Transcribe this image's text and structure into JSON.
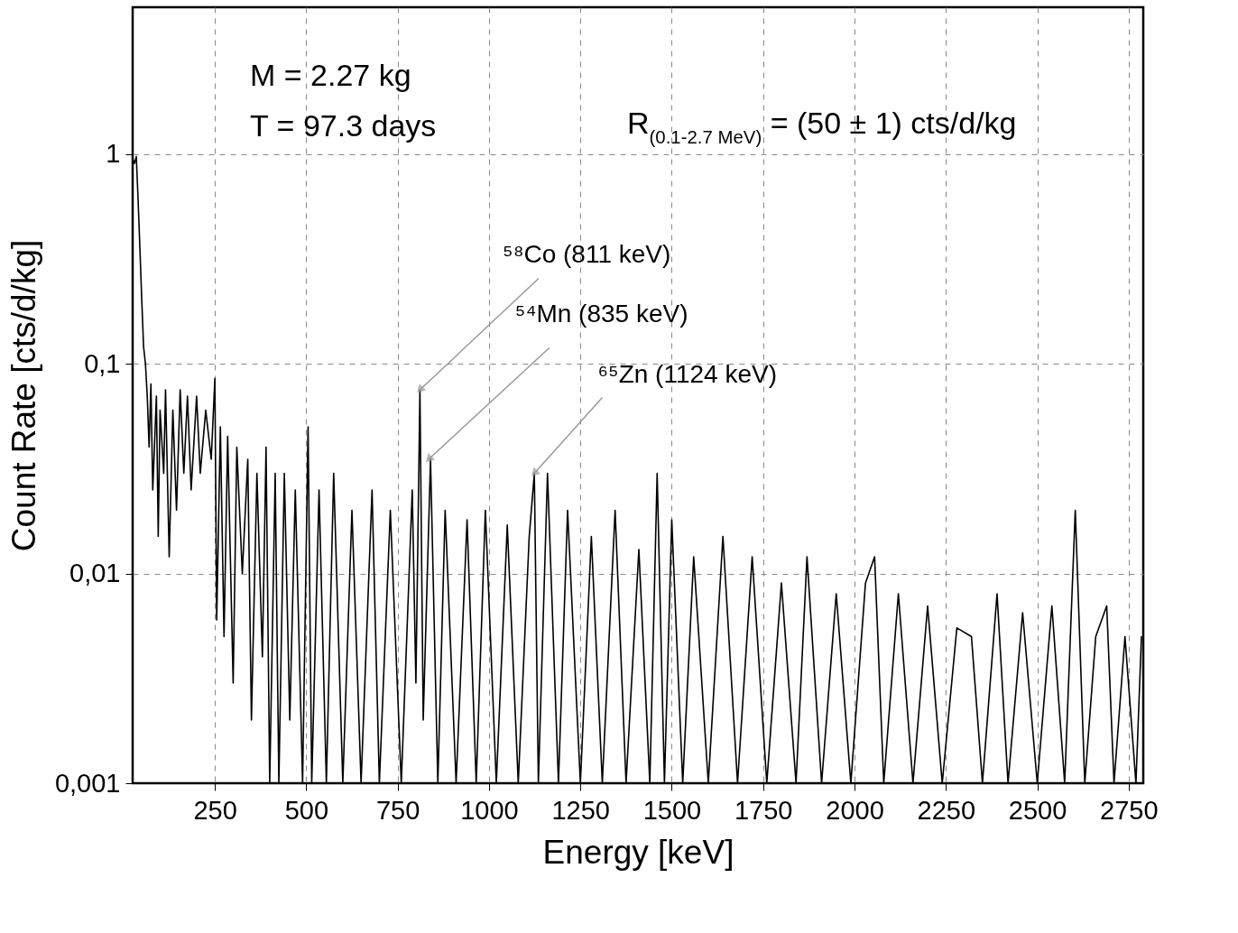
{
  "chart_data": {
    "type": "line",
    "xlabel": "Energy [keV]",
    "ylabel": "Count Rate [cts/d/kg]",
    "annotations": [
      "M = 2.27 kg",
      "T = 97.3 days",
      "R$_{(0.1-2.7 MeV)}$ = (50 ± 1) cts/d/kg",
      {
        "text": "⁵⁸Co (811 keV)",
        "x": 811,
        "y": 0.075
      },
      {
        "text": "⁵⁴Mn (835 keV)",
        "x": 835,
        "y": 0.035
      },
      {
        "text": "⁶⁵Zn (1124 keV)",
        "x": 1124,
        "y": 0.03
      }
    ],
    "x": [
      25,
      30,
      35,
      40,
      45,
      50,
      55,
      60,
      65,
      70,
      75,
      80,
      90,
      95,
      100,
      110,
      115,
      125,
      135,
      145,
      155,
      165,
      175,
      185,
      200,
      210,
      225,
      240,
      250,
      255,
      265,
      275,
      285,
      300,
      310,
      325,
      340,
      350,
      365,
      380,
      390,
      400,
      415,
      425,
      440,
      455,
      470,
      490,
      505,
      515,
      535,
      555,
      575,
      600,
      625,
      650,
      680,
      700,
      730,
      760,
      790,
      800,
      811,
      820,
      840,
      860,
      880,
      910,
      940,
      965,
      990,
      1020,
      1050,
      1080,
      1110,
      1124,
      1135,
      1160,
      1190,
      1215,
      1250,
      1280,
      1310,
      1345,
      1375,
      1410,
      1440,
      1460,
      1480,
      1500,
      1530,
      1560,
      1600,
      1640,
      1680,
      1720,
      1760,
      1800,
      1840,
      1870,
      1910,
      1950,
      1990,
      2030,
      2055,
      2080,
      2120,
      2160,
      2200,
      2240,
      2280,
      2320,
      2350,
      2390,
      2420,
      2460,
      2500,
      2540,
      2575,
      2604,
      2630,
      2660,
      2690,
      2710,
      2740,
      2770,
      2785
    ],
    "series": [
      {
        "color": "#000000",
        "values": [
          0.95,
          0.9,
          0.97,
          0.6,
          0.35,
          0.2,
          0.12,
          0.1,
          0.07,
          0.04,
          0.08,
          0.025,
          0.07,
          0.015,
          0.06,
          0.03,
          0.075,
          0.012,
          0.06,
          0.02,
          0.075,
          0.03,
          0.07,
          0.025,
          0.07,
          0.03,
          0.06,
          0.035,
          0.085,
          0.006,
          0.05,
          0.005,
          0.045,
          0.003,
          0.04,
          0.01,
          0.035,
          0.002,
          0.03,
          0.004,
          0.04,
          0.001,
          0.03,
          0.001,
          0.03,
          0.002,
          0.025,
          0.001,
          0.05,
          0.001,
          0.025,
          0.001,
          0.03,
          0.001,
          0.02,
          0.001,
          0.025,
          0.001,
          0.02,
          0.001,
          0.025,
          0.003,
          0.075,
          0.002,
          0.035,
          0.001,
          0.02,
          0.001,
          0.018,
          0.001,
          0.02,
          0.001,
          0.017,
          0.001,
          0.015,
          0.03,
          0.001,
          0.03,
          0.001,
          0.02,
          0.001,
          0.015,
          0.001,
          0.02,
          0.001,
          0.013,
          0.001,
          0.03,
          0.001,
          0.018,
          0.001,
          0.012,
          0.001,
          0.015,
          0.001,
          0.012,
          0.001,
          0.009,
          0.001,
          0.012,
          0.001,
          0.008,
          0.001,
          0.009,
          0.012,
          0.001,
          0.008,
          0.001,
          0.007,
          0.001,
          0.0055,
          0.005,
          0.001,
          0.008,
          0.001,
          0.0065,
          0.001,
          0.007,
          0.001,
          0.02,
          0.001,
          0.005,
          0.007,
          0.001,
          0.005,
          0.001,
          0.005
        ]
      }
    ],
    "xlim": [
      25,
      2790
    ],
    "xticks": [
      250,
      500,
      750,
      1000,
      1250,
      1500,
      1750,
      2000,
      2250,
      2500,
      2750
    ],
    "ylim": [
      0.001,
      5
    ],
    "yticks": [
      {
        "value": 0.001,
        "label": "0,001"
      },
      {
        "value": 0.01,
        "label": "0,01"
      },
      {
        "value": 0.1,
        "label": "0,1"
      },
      1
    ],
    "log": true,
    "grid": true,
    "legend": false
  }
}
